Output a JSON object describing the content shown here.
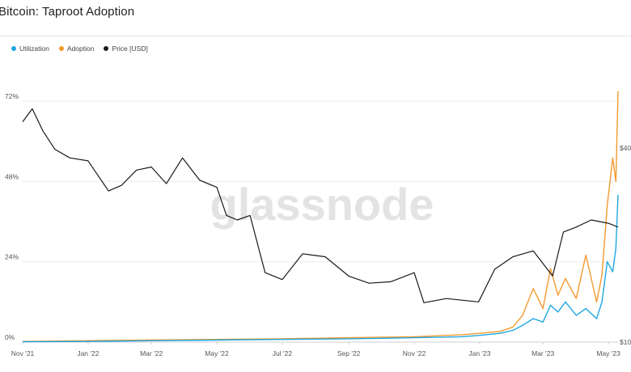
{
  "header": {
    "title": "Bitcoin: Taproot Adoption"
  },
  "colors": {
    "utilization": "#1ea7e1",
    "adoption": "#f39a2e",
    "price": "#1a1a1a",
    "grid": "#ececec",
    "watermark": "#e3e3e3"
  },
  "watermark": "glassnode",
  "chart_data": {
    "type": "line",
    "title": "Bitcoin: Taproot Adoption",
    "legend_position": "top-left",
    "grid": true,
    "x_tick_labels": [
      "Nov '21",
      "Jan '22",
      "Mar '22",
      "May '22",
      "Jul '22",
      "Sep '22",
      "Nov '22",
      "Jan '23",
      "Mar '23",
      "May '23"
    ],
    "y_left": {
      "tick_labels": [
        "0%",
        "24%",
        "48%",
        "72%"
      ],
      "ylim": [
        0,
        80
      ]
    },
    "y_right": {
      "tick_labels": [
        "$10",
        "$40"
      ],
      "scale": "log"
    },
    "series": [
      {
        "name": "Utilization",
        "axis": "left",
        "x": [
          "2021-11-01",
          "2022-01-01",
          "2022-03-01",
          "2022-05-01",
          "2022-07-01",
          "2022-09-01",
          "2022-11-01",
          "2022-12-15",
          "2023-01-01",
          "2023-01-20",
          "2023-02-01",
          "2023-02-10",
          "2023-02-20",
          "2023-03-01",
          "2023-03-08",
          "2023-03-15",
          "2023-03-22",
          "2023-04-01",
          "2023-04-10",
          "2023-04-20",
          "2023-04-25",
          "2023-04-30",
          "2023-05-05",
          "2023-05-08",
          "2023-05-10"
        ],
        "values": [
          0.1,
          0.2,
          0.4,
          0.6,
          0.8,
          1.0,
          1.3,
          1.6,
          2.0,
          2.6,
          3.5,
          5,
          7,
          6,
          11,
          9,
          12,
          8,
          10,
          7,
          12,
          24,
          21,
          28,
          44
        ]
      },
      {
        "name": "Adoption",
        "axis": "left",
        "x": [
          "2021-11-01",
          "2022-01-01",
          "2022-03-01",
          "2022-05-01",
          "2022-07-01",
          "2022-09-01",
          "2022-11-01",
          "2022-12-15",
          "2023-01-01",
          "2023-01-20",
          "2023-02-01",
          "2023-02-10",
          "2023-02-20",
          "2023-03-01",
          "2023-03-08",
          "2023-03-15",
          "2023-03-22",
          "2023-04-01",
          "2023-04-10",
          "2023-04-20",
          "2023-04-25",
          "2023-04-30",
          "2023-05-05",
          "2023-05-08",
          "2023-05-10"
        ],
        "values": [
          0.2,
          0.4,
          0.6,
          0.8,
          1.0,
          1.3,
          1.6,
          2.2,
          2.6,
          3.2,
          4.5,
          8,
          16,
          10,
          22,
          14,
          19,
          13,
          26,
          12,
          20,
          41,
          55,
          48,
          75
        ]
      },
      {
        "name": "Price [USD]",
        "axis": "right",
        "x": [
          "2021-11-01",
          "2021-11-10",
          "2021-11-20",
          "2021-12-01",
          "2021-12-15",
          "2022-01-01",
          "2022-01-20",
          "2022-02-01",
          "2022-02-15",
          "2022-03-01",
          "2022-03-15",
          "2022-03-30",
          "2022-04-15",
          "2022-05-01",
          "2022-05-10",
          "2022-05-20",
          "2022-06-01",
          "2022-06-15",
          "2022-07-01",
          "2022-07-20",
          "2022-08-10",
          "2022-09-01",
          "2022-09-20",
          "2022-10-10",
          "2022-11-01",
          "2022-11-10",
          "2022-12-01",
          "2022-12-31",
          "2023-01-15",
          "2023-02-01",
          "2023-02-20",
          "2023-03-10",
          "2023-03-20",
          "2023-04-01",
          "2023-04-15",
          "2023-05-01",
          "2023-05-10"
        ],
        "values": [
          61000,
          67000,
          57000,
          50000,
          47000,
          46000,
          37000,
          38500,
          43000,
          44000,
          39000,
          47000,
          40000,
          38000,
          31000,
          30000,
          31000,
          20500,
          19500,
          23500,
          23000,
          20000,
          19000,
          19200,
          20500,
          16500,
          17000,
          16600,
          21000,
          23000,
          24000,
          20000,
          27500,
          28500,
          30000,
          29300,
          28500
        ]
      }
    ]
  }
}
